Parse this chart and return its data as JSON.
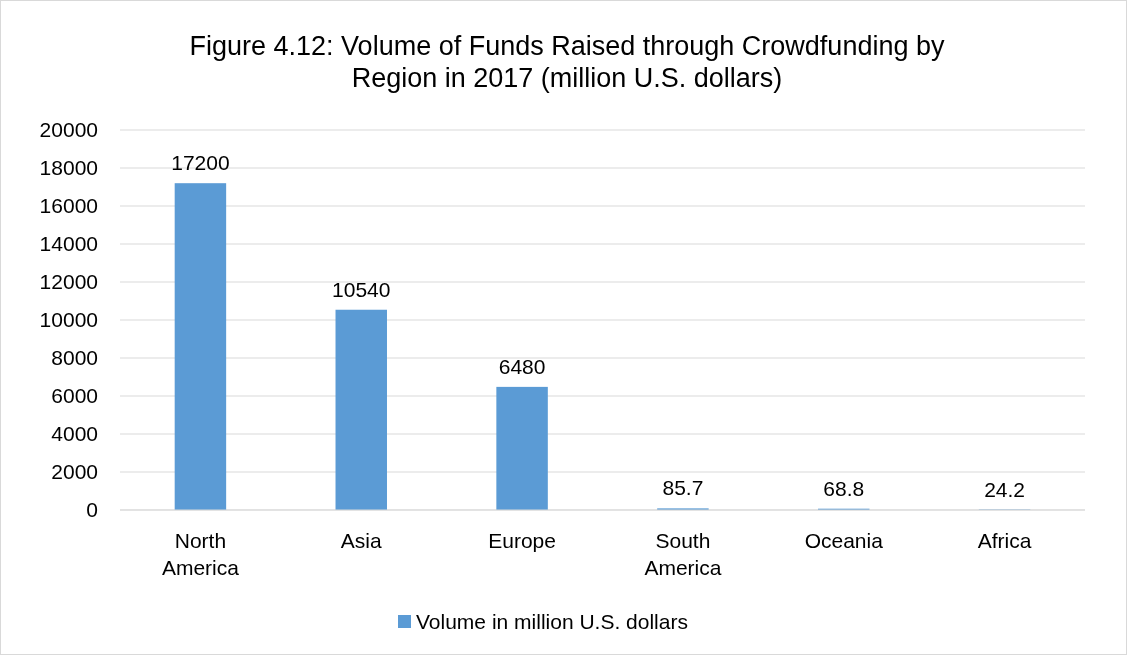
{
  "chart_data": {
    "type": "bar",
    "title": "Figure 4.12: Volume of Funds Raised through Crowdfunding by Region in 2017 (million U.S. dollars)",
    "categories": [
      "North America",
      "Asia",
      "Europe",
      "South America",
      "Oceania",
      "Africa"
    ],
    "series": [
      {
        "name": "Volume in million U.S. dollars",
        "color": "#5b9bd5",
        "values": [
          17200,
          10540,
          6480,
          85.7,
          68.8,
          24.2
        ]
      }
    ],
    "ylim": [
      0,
      20000
    ],
    "yticks": [
      0,
      2000,
      4000,
      6000,
      8000,
      10000,
      12000,
      14000,
      16000,
      18000,
      20000
    ],
    "grid": "y",
    "legend": "bottom",
    "data_labels": true
  }
}
